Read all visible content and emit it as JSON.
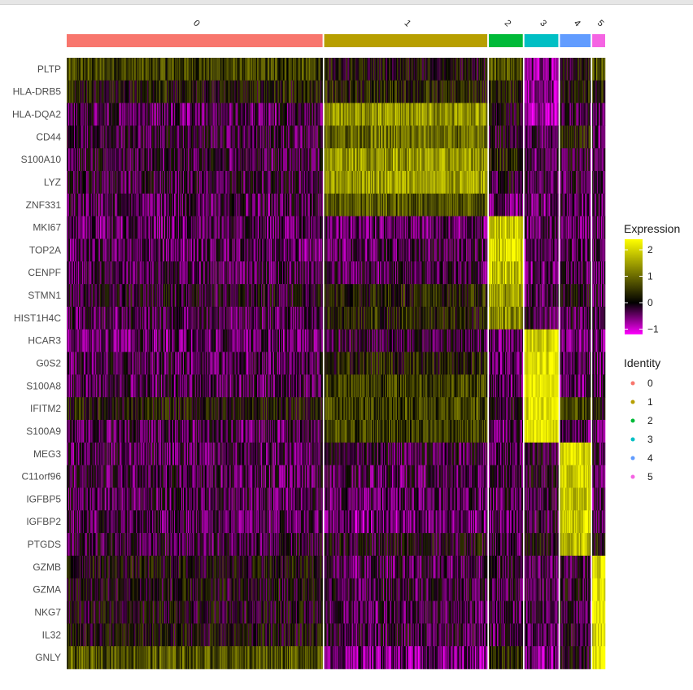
{
  "chart_data": {
    "type": "heatmap",
    "title": "",
    "xlabel": "",
    "ylabel": "",
    "clusters": [
      {
        "id": "0",
        "color": "#F8766D",
        "cells": 317
      },
      {
        "id": "1",
        "color": "#B79F00",
        "cells": 202
      },
      {
        "id": "2",
        "color": "#00BA38",
        "cells": 42
      },
      {
        "id": "3",
        "color": "#00BFC4",
        "cells": 42
      },
      {
        "id": "4",
        "color": "#619CFF",
        "cells": 38
      },
      {
        "id": "5",
        "color": "#F564E3",
        "cells": 16
      }
    ],
    "genes": [
      "PLTP",
      "HLA-DRB5",
      "HLA-DQA2",
      "CD44",
      "S100A10",
      "LYZ",
      "ZNF331",
      "MKI67",
      "TOP2A",
      "CENPF",
      "STMN1",
      "HIST1H4C",
      "HCAR3",
      "G0S2",
      "S100A8",
      "IFITM2",
      "S100A9",
      "MEG3",
      "C11orf96",
      "IGFBP5",
      "IGFBP2",
      "PTGDS",
      "GZMB",
      "GZMA",
      "NKG7",
      "IL32",
      "GNLY"
    ],
    "mean_expression": [
      [
        0.6,
        0.1,
        0.7,
        -0.7,
        0.1,
        0.7
      ],
      [
        0.2,
        0.3,
        0.3,
        -0.7,
        0.2,
        0.3
      ],
      [
        -0.3,
        1.4,
        0.1,
        -0.8,
        -0.2,
        -0.3
      ],
      [
        -0.2,
        1.0,
        -0.1,
        -0.4,
        0.3,
        -0.3
      ],
      [
        -0.2,
        1.4,
        0.3,
        -0.3,
        -0.1,
        -0.3
      ],
      [
        -0.2,
        1.5,
        -0.1,
        -0.2,
        -0.3,
        -0.4
      ],
      [
        -0.3,
        0.8,
        -0.4,
        -0.5,
        -0.3,
        -0.4
      ],
      [
        -0.4,
        -0.4,
        2.0,
        -0.4,
        -0.4,
        -0.4
      ],
      [
        -0.4,
        -0.3,
        2.0,
        -0.4,
        -0.4,
        -0.4
      ],
      [
        -0.3,
        -0.3,
        1.8,
        -0.4,
        -0.3,
        -0.3
      ],
      [
        -0.1,
        0.3,
        1.5,
        -0.4,
        0.0,
        -0.3
      ],
      [
        -0.3,
        0.3,
        1.3,
        -0.3,
        -0.3,
        -0.3
      ],
      [
        -0.4,
        -0.2,
        -0.4,
        2.1,
        -0.4,
        -0.4
      ],
      [
        -0.3,
        0.3,
        -0.4,
        2.2,
        -0.4,
        -0.4
      ],
      [
        -0.3,
        0.6,
        -0.4,
        2.3,
        -0.4,
        -0.4
      ],
      [
        0.2,
        0.6,
        0.0,
        2.2,
        0.6,
        0.2
      ],
      [
        -0.3,
        0.6,
        -0.4,
        2.3,
        -0.4,
        -0.4
      ],
      [
        -0.3,
        -0.2,
        -0.3,
        -0.2,
        2.1,
        -0.3
      ],
      [
        -0.3,
        -0.3,
        -0.3,
        -0.1,
        2.0,
        -0.3
      ],
      [
        -0.3,
        -0.4,
        -0.3,
        -0.2,
        2.0,
        -0.3
      ],
      [
        -0.3,
        -0.5,
        -0.3,
        -0.2,
        2.0,
        -0.3
      ],
      [
        -0.2,
        0.0,
        -0.3,
        0.1,
        1.8,
        0.1
      ],
      [
        0.1,
        -0.3,
        -0.2,
        -0.3,
        -0.2,
        2.2
      ],
      [
        0.0,
        -0.2,
        -0.2,
        -0.3,
        -0.1,
        2.2
      ],
      [
        0.0,
        -0.3,
        -0.3,
        -0.3,
        -0.2,
        2.3
      ],
      [
        0.1,
        -0.2,
        -0.2,
        -0.4,
        -0.1,
        2.0
      ],
      [
        0.8,
        -0.6,
        0.5,
        -0.6,
        0.1,
        2.3
      ]
    ],
    "color_scale": {
      "low": "#FF00FF",
      "mid": "#000000",
      "high": "#FFFF00",
      "min": -1.2,
      "max": 2.4
    },
    "legend": {
      "expression_title": "Expression",
      "expression_ticks": [
        2,
        1,
        0,
        -1
      ],
      "expression_tick_labels": [
        "2",
        "1",
        "0",
        "−1"
      ],
      "identity_title": "Identity",
      "identity_labels": [
        "0",
        "1",
        "2",
        "3",
        "4",
        "5"
      ],
      "placement": "right"
    }
  }
}
